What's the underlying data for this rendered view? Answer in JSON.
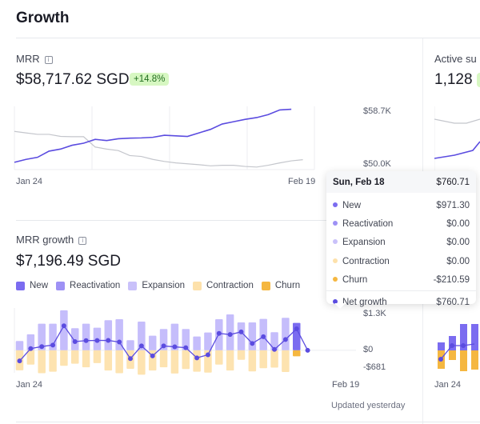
{
  "page": {
    "title": "Growth",
    "updated": "Updated yesterday"
  },
  "mrr": {
    "label": "MRR",
    "value": "$58,717.62 SGD",
    "change": "+14.8%",
    "chart_data": {
      "type": "line",
      "x_start": "Jan 24",
      "x_end": "Feb 19",
      "ylim": [
        49900,
        58900
      ],
      "ytick_labels": [
        "$58.7K",
        "$50.0K"
      ],
      "series": [
        {
          "role": "current",
          "color": "#5b4ce0",
          "values": [
            50751,
            51192,
            51502,
            52429,
            52738,
            53312,
            53621,
            54195,
            54019,
            54284,
            54372,
            54416,
            54505,
            54814,
            54725,
            54637,
            55167,
            55697,
            56491,
            56845,
            57195,
            57464,
            57905,
            58612,
            58718
          ]
        },
        {
          "role": "previous",
          "color": "#c4c6cc",
          "values": [
            55388,
            55167,
            54946,
            54946,
            54637,
            54593,
            54593,
            53047,
            52738,
            52517,
            51767,
            51634,
            51192,
            50883,
            50662,
            50530,
            50397,
            50221,
            50309,
            50309,
            50132,
            50044,
            50309,
            50662,
            50972,
            51148
          ]
        }
      ]
    }
  },
  "growth": {
    "label": "MRR growth",
    "value": "$7,196.49 SGD",
    "legend": [
      {
        "label": "New",
        "color": "#7b6cf0"
      },
      {
        "label": "Reactivation",
        "color": "#9e91f5"
      },
      {
        "label": "Expansion",
        "color": "#c9c1fa"
      },
      {
        "label": "Contraction",
        "color": "#fde1ab"
      },
      {
        "label": "Churn",
        "color": "#f5b740"
      }
    ],
    "chart_data": {
      "type": "bar",
      "x_start": "Jan 24",
      "x_end": "Feb 19",
      "ylim": [
        -681,
        1300
      ],
      "ytick_labels": [
        "$1.3K",
        "$0",
        "-$681"
      ],
      "highlight_index": 25,
      "positive": [
        330,
        566,
        943,
        943,
        1415,
        783,
        943,
        802,
        1066,
        1103,
        358,
        1018,
        519,
        754,
        943,
        754,
        490,
        632,
        1103,
        1273,
        990,
        990,
        1113,
        641,
        1150,
        971.3,
        0
      ],
      "negative": [
        -704,
        -504,
        -809,
        -756,
        -546,
        -473,
        -598,
        -452,
        -714,
        -809,
        -651,
        -861,
        -714,
        -598,
        -819,
        -661,
        -756,
        -788,
        -504,
        -714,
        -336,
        -746,
        -630,
        -609,
        -767,
        -210.59,
        0
      ],
      "net": [
        -374,
        62,
        134,
        187,
        869,
        310,
        345,
        350,
        352,
        294,
        -293,
        157,
        -195,
        156,
        124,
        93,
        -266,
        -156,
        599,
        559,
        654,
        244,
        483,
        32,
        383,
        760.71,
        0
      ],
      "net_color": "#5b4ce0"
    }
  },
  "tooltip": {
    "date": "Sun, Feb 18",
    "total": "$760.71",
    "rows": [
      {
        "label": "New",
        "value": "$971.30",
        "color": "#7b6cf0"
      },
      {
        "label": "Reactivation",
        "value": "$0.00",
        "color": "#9e91f5"
      },
      {
        "label": "Expansion",
        "value": "$0.00",
        "color": "#c9c1fa"
      },
      {
        "label": "Contraction",
        "value": "$0.00",
        "color": "#fde1ab"
      },
      {
        "label": "Churn",
        "value": "-$210.59",
        "color": "#f5b740"
      }
    ],
    "net_label": "Net growth",
    "net_value": "$760.71"
  },
  "active": {
    "label": "Active su",
    "value": "1,128",
    "x_start": "Jan 24"
  }
}
